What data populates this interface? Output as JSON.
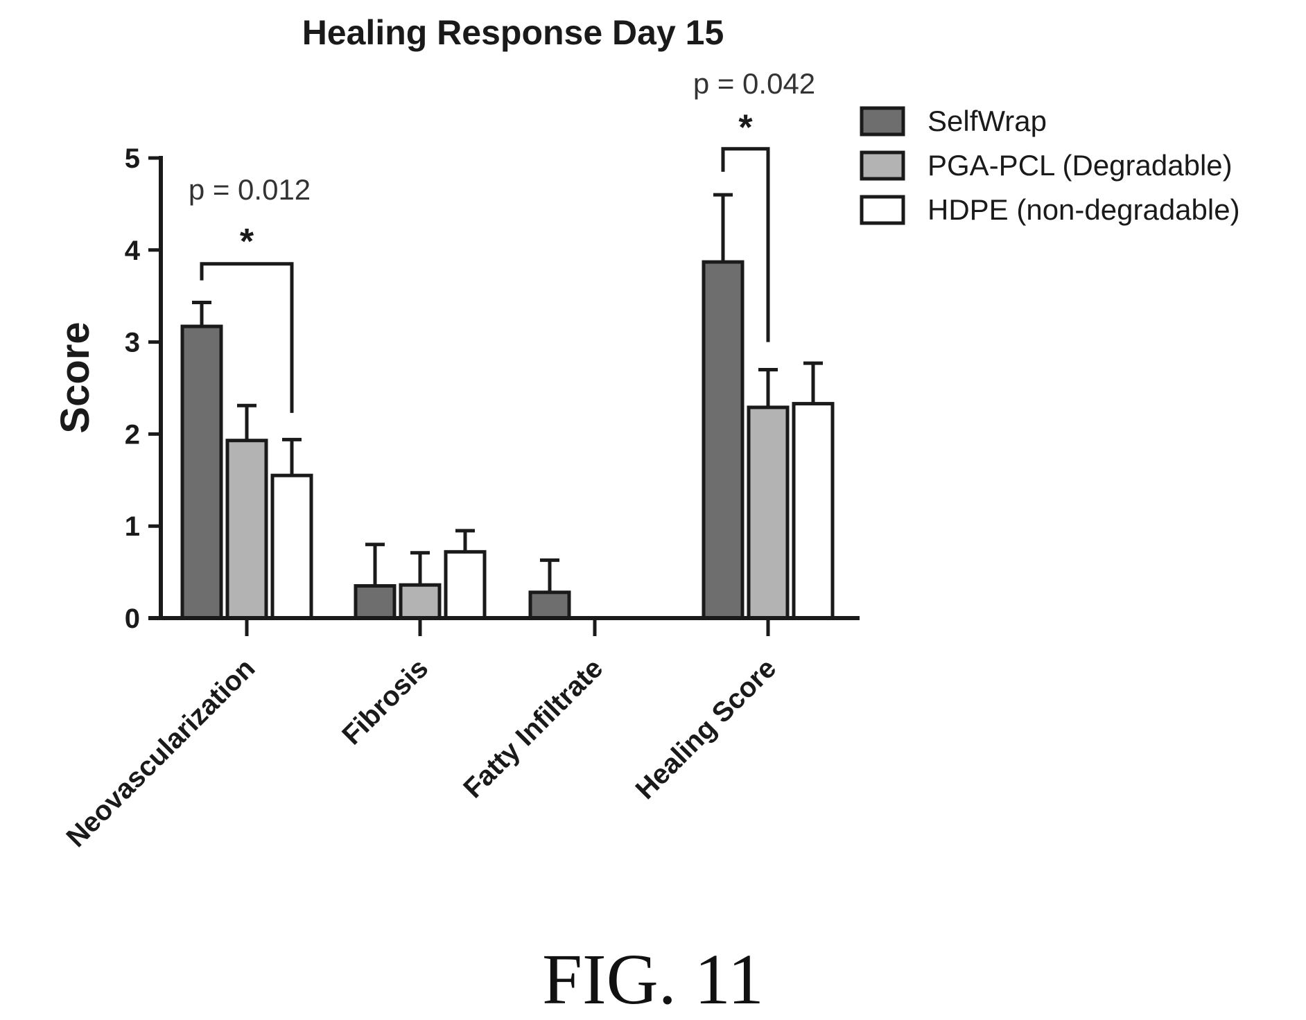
{
  "chart_data": {
    "type": "bar",
    "title": "Healing Response Day 15",
    "xlabel": "",
    "ylabel": "Score",
    "ylim": [
      0,
      5
    ],
    "yticks": [
      "0",
      "1",
      "2",
      "3",
      "4",
      "5"
    ],
    "categories": [
      "Neovascularization",
      "Fibrosis",
      "Fatty Infiltrate",
      "Healing Score"
    ],
    "series": [
      {
        "name": "SelfWrap",
        "color": "#6e6e6e",
        "values": [
          3.17,
          0.35,
          0.28,
          3.87
        ],
        "errors": [
          0.26,
          0.45,
          0.35,
          0.73
        ]
      },
      {
        "name": "PGA-PCL (Degradable)",
        "color": "#b3b3b3",
        "values": [
          1.93,
          0.36,
          0,
          2.29
        ],
        "errors": [
          0.38,
          0.35,
          0,
          0.41
        ]
      },
      {
        "name": "HDPE (non-degradable)",
        "color": "#ffffff",
        "values": [
          1.55,
          0.72,
          0,
          2.33
        ],
        "errors": [
          0.39,
          0.23,
          0,
          0.44
        ]
      }
    ],
    "legend_position": "top-right",
    "grid": false,
    "annotations": [
      {
        "text": "p = 0.012",
        "star": "*",
        "category": "Neovascularization"
      },
      {
        "text": "p = 0.042",
        "star": "*",
        "category": "Healing Score"
      }
    ]
  },
  "caption": "FIG. 11"
}
